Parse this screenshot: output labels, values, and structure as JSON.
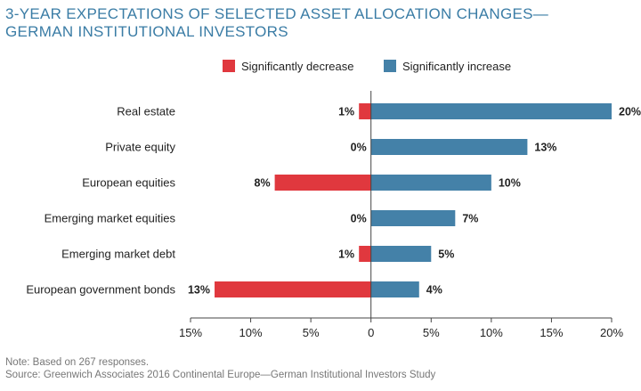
{
  "title_lines": [
    "3-YEAR EXPECTATIONS OF SELECTED ASSET ALLOCATION CHANGES—",
    "GERMAN INSTITUTIONAL INVESTORS"
  ],
  "note": "Note: Based on 267 responses.",
  "source": "Source: Greenwich Associates 2016 Continental Europe—German Institutional Investors Study",
  "colors": {
    "decrease": "#e0383e",
    "increase": "#4481a8",
    "title": "#3a7ca5"
  },
  "chart_data": {
    "type": "bar",
    "orientation": "horizontal-diverging",
    "title": "3-YEAR EXPECTATIONS OF SELECTED ASSET ALLOCATION CHANGES—GERMAN INSTITUTIONAL INVESTORS",
    "categories": [
      "Real estate",
      "Private equity",
      "European equities",
      "Emerging market equities",
      "Emerging market debt",
      "European government bonds"
    ],
    "series": [
      {
        "name": "Significantly decrease",
        "values": [
          1,
          0,
          8,
          0,
          1,
          13
        ],
        "labels": [
          "1%",
          "0%",
          "8%",
          "0%",
          "1%",
          "13%"
        ]
      },
      {
        "name": "Significantly increase",
        "values": [
          20,
          13,
          10,
          7,
          5,
          4
        ],
        "labels": [
          "20%",
          "13%",
          "10%",
          "7%",
          "5%",
          "4%"
        ]
      }
    ],
    "xlim": [
      -15,
      20
    ],
    "xticks": [
      -15,
      -10,
      -5,
      0,
      5,
      10,
      15,
      20
    ],
    "xtick_labels": [
      "15%",
      "10%",
      "5%",
      "0",
      "5%",
      "10%",
      "15%",
      "20%"
    ],
    "xlabel": "",
    "ylabel": "",
    "legend": "top-right",
    "grid": false
  }
}
